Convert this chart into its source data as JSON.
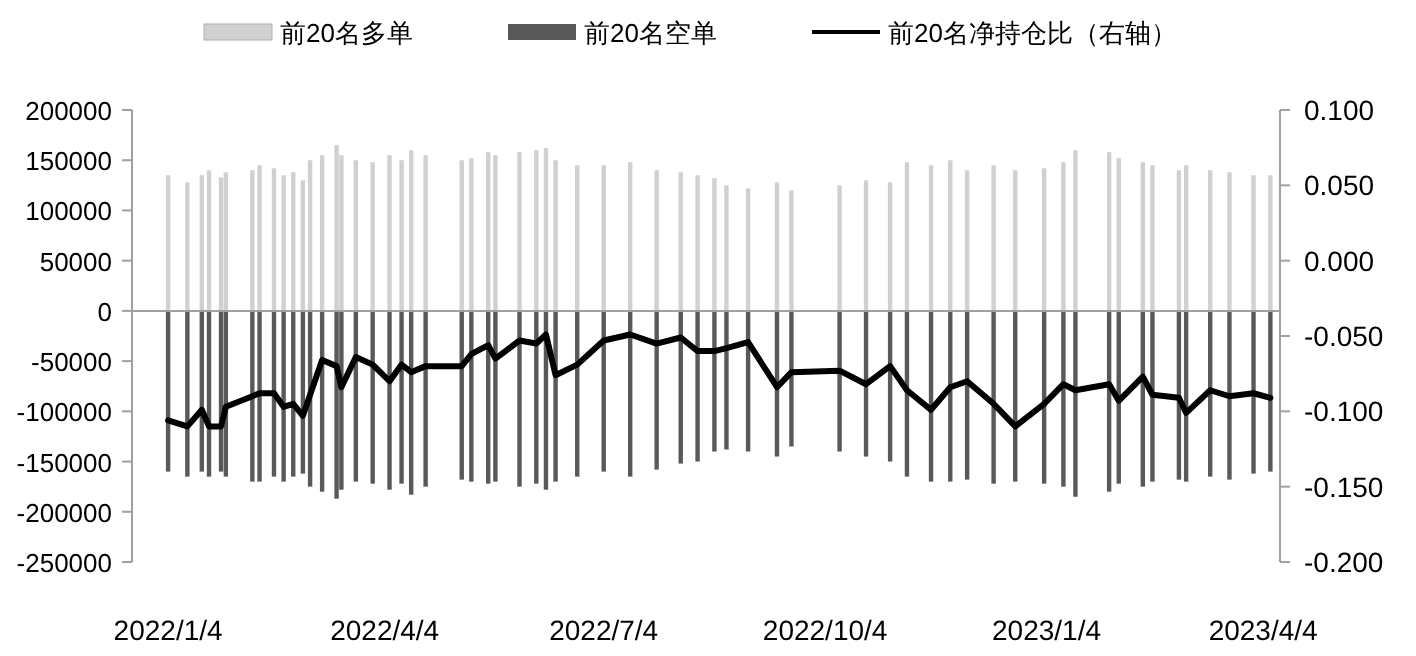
{
  "chart_data": {
    "type": "bar",
    "stacked": true,
    "legend": "top",
    "x": [
      "2022-01-04",
      "2022-01-12",
      "2022-01-18",
      "2022-01-21",
      "2022-01-26",
      "2022-01-28",
      "2022-02-08",
      "2022-02-11",
      "2022-02-17",
      "2022-02-21",
      "2022-02-25",
      "2022-03-01",
      "2022-03-04",
      "2022-03-09",
      "2022-03-15",
      "2022-03-17",
      "2022-03-23",
      "2022-03-30",
      "2022-04-06",
      "2022-04-11",
      "2022-04-15",
      "2022-04-21",
      "2022-05-06",
      "2022-05-10",
      "2022-05-17",
      "2022-05-20",
      "2022-05-30",
      "2022-06-06",
      "2022-06-10",
      "2022-06-14",
      "2022-06-23",
      "2022-07-04",
      "2022-07-15",
      "2022-07-26",
      "2022-08-05",
      "2022-08-12",
      "2022-08-19",
      "2022-08-24",
      "2022-09-02",
      "2022-09-14",
      "2022-09-20",
      "2022-10-10",
      "2022-10-21",
      "2022-10-31",
      "2022-11-07",
      "2022-11-17",
      "2022-11-25",
      "2022-12-02",
      "2022-12-13",
      "2022-12-22",
      "2023-01-03",
      "2023-01-11",
      "2023-01-16",
      "2023-01-30",
      "2023-02-03",
      "2023-02-13",
      "2023-02-17",
      "2023-02-28",
      "2023-03-03",
      "2023-03-13",
      "2023-03-21",
      "2023-03-31",
      "2023-04-07"
    ],
    "xlim": [
      "2021-12-20",
      "2023-04-11"
    ],
    "xticks": [
      {
        "value": "2022-01-04",
        "label": "2022/1/4"
      },
      {
        "value": "2022-04-04",
        "label": "2022/4/4"
      },
      {
        "value": "2022-07-04",
        "label": "2022/7/4"
      },
      {
        "value": "2022-10-04",
        "label": "2022/10/4"
      },
      {
        "value": "2023-01-04",
        "label": "2023/1/4"
      },
      {
        "value": "2023-04-04",
        "label": "2023/4/4"
      }
    ],
    "ylim": [
      -250000,
      200000
    ],
    "yticks": [
      -250000,
      -200000,
      -150000,
      -100000,
      -50000,
      0,
      50000,
      100000,
      150000,
      200000
    ],
    "y2lim": [
      -0.2,
      0.1
    ],
    "y2ticks": [
      {
        "value": -0.2,
        "label": "-0.200"
      },
      {
        "value": -0.15,
        "label": "-0.150"
      },
      {
        "value": -0.1,
        "label": "-0.100"
      },
      {
        "value": -0.05,
        "label": "-0.050"
      },
      {
        "value": 0,
        "label": "0.000"
      },
      {
        "value": 0.05,
        "label": "0.050"
      },
      {
        "value": 0.1,
        "label": "0.100"
      }
    ],
    "series": [
      {
        "name": "前20名多单",
        "color": "#d0d0d0",
        "values": [
          135000,
          128000,
          135000,
          140000,
          133000,
          138000,
          140000,
          145000,
          142000,
          135000,
          138000,
          130000,
          150000,
          155000,
          165000,
          155000,
          150000,
          148000,
          155000,
          150000,
          160000,
          155000,
          150000,
          152000,
          158000,
          155000,
          158000,
          160000,
          162000,
          150000,
          145000,
          145000,
          148000,
          140000,
          138000,
          135000,
          132000,
          125000,
          122000,
          128000,
          120000,
          125000,
          130000,
          128000,
          148000,
          145000,
          150000,
          140000,
          145000,
          140000,
          142000,
          148000,
          160000,
          158000,
          152000,
          148000,
          145000,
          140000,
          145000,
          140000,
          138000,
          135000,
          135000
        ]
      },
      {
        "name": "前20名空单",
        "color": "#595959",
        "values": [
          -160000,
          -165000,
          -160000,
          -165000,
          -160000,
          -165000,
          -170000,
          -170000,
          -165000,
          -170000,
          -165000,
          -162000,
          -175000,
          -180000,
          -187000,
          -178000,
          -170000,
          -172000,
          -178000,
          -172000,
          -183000,
          -175000,
          -168000,
          -170000,
          -172000,
          -170000,
          -175000,
          -172000,
          -178000,
          -170000,
          -165000,
          -160000,
          -165000,
          -158000,
          -152000,
          -150000,
          -140000,
          -138000,
          -140000,
          -145000,
          -135000,
          -140000,
          -145000,
          -150000,
          -165000,
          -170000,
          -170000,
          -168000,
          -172000,
          -170000,
          -172000,
          -175000,
          -185000,
          -180000,
          -172000,
          -175000,
          -170000,
          -168000,
          -170000,
          -165000,
          -168000,
          -162000,
          -160000
        ]
      },
      {
        "name": "前20名净持仓比（右轴）",
        "type": "line",
        "axis": "y2",
        "color": "#000000",
        "values": [
          -0.106,
          -0.11,
          -0.099,
          -0.11,
          -0.11,
          -0.097,
          -0.09,
          -0.088,
          -0.088,
          -0.097,
          -0.095,
          -0.103,
          -0.089,
          -0.066,
          -0.07,
          -0.084,
          -0.064,
          -0.069,
          -0.08,
          -0.069,
          -0.074,
          -0.07,
          -0.07,
          -0.062,
          -0.056,
          -0.065,
          -0.053,
          -0.055,
          -0.049,
          -0.076,
          -0.069,
          -0.053,
          -0.049,
          -0.055,
          -0.051,
          -0.06,
          -0.06,
          -0.058,
          -0.054,
          -0.084,
          -0.074,
          -0.073,
          -0.082,
          -0.07,
          -0.086,
          -0.099,
          -0.084,
          -0.08,
          -0.095,
          -0.11,
          -0.095,
          -0.082,
          -0.086,
          -0.082,
          -0.093,
          -0.077,
          -0.089,
          -0.091,
          -0.101,
          -0.086,
          -0.09,
          -0.088,
          -0.091
        ]
      }
    ]
  }
}
